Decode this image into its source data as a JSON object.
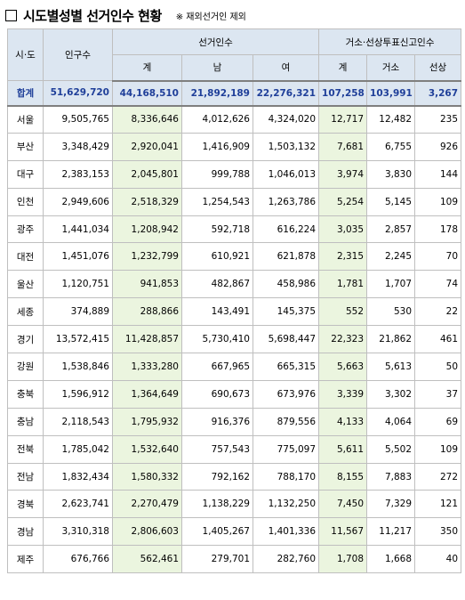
{
  "header": {
    "title": "시도별성별 선거인수 현황",
    "note": "※ 재외선거인 제외"
  },
  "table": {
    "columns": {
      "region": "시·도",
      "population": "인구수",
      "electors": "선거인수",
      "electors_sub": [
        "계",
        "남",
        "여"
      ],
      "absentee": "거소·선상투표신고인수",
      "absentee_sub": [
        "계",
        "거소",
        "선상"
      ]
    },
    "rows": [
      [
        "합계",
        "51,629,720",
        "44,168,510",
        "21,892,189",
        "22,276,321",
        "107,258",
        "103,991",
        "3,267"
      ],
      [
        "서울",
        "9,505,765",
        "8,336,646",
        "4,012,626",
        "4,324,020",
        "12,717",
        "12,482",
        "235"
      ],
      [
        "부산",
        "3,348,429",
        "2,920,041",
        "1,416,909",
        "1,503,132",
        "7,681",
        "6,755",
        "926"
      ],
      [
        "대구",
        "2,383,153",
        "2,045,801",
        "999,788",
        "1,046,013",
        "3,974",
        "3,830",
        "144"
      ],
      [
        "인천",
        "2,949,606",
        "2,518,329",
        "1,254,543",
        "1,263,786",
        "5,254",
        "5,145",
        "109"
      ],
      [
        "광주",
        "1,441,034",
        "1,208,942",
        "592,718",
        "616,224",
        "3,035",
        "2,857",
        "178"
      ],
      [
        "대전",
        "1,451,076",
        "1,232,799",
        "610,921",
        "621,878",
        "2,315",
        "2,245",
        "70"
      ],
      [
        "울산",
        "1,120,751",
        "941,853",
        "482,867",
        "458,986",
        "1,781",
        "1,707",
        "74"
      ],
      [
        "세종",
        "374,889",
        "288,866",
        "143,491",
        "145,375",
        "552",
        "530",
        "22"
      ],
      [
        "경기",
        "13,572,415",
        "11,428,857",
        "5,730,410",
        "5,698,447",
        "22,323",
        "21,862",
        "461"
      ],
      [
        "강원",
        "1,538,846",
        "1,333,280",
        "667,965",
        "665,315",
        "5,663",
        "5,613",
        "50"
      ],
      [
        "충북",
        "1,596,912",
        "1,364,649",
        "690,673",
        "673,976",
        "3,339",
        "3,302",
        "37"
      ],
      [
        "충남",
        "2,118,543",
        "1,795,932",
        "916,376",
        "879,556",
        "4,133",
        "4,064",
        "69"
      ],
      [
        "전북",
        "1,785,042",
        "1,532,640",
        "757,543",
        "775,097",
        "5,611",
        "5,502",
        "109"
      ],
      [
        "전남",
        "1,832,434",
        "1,580,332",
        "792,162",
        "788,170",
        "8,155",
        "7,883",
        "272"
      ],
      [
        "경북",
        "2,623,741",
        "2,270,479",
        "1,138,229",
        "1,132,250",
        "7,450",
        "7,329",
        "121"
      ],
      [
        "경남",
        "3,310,318",
        "2,806,603",
        "1,405,267",
        "1,401,336",
        "11,567",
        "11,217",
        "350"
      ],
      [
        "제주",
        "676,766",
        "562,461",
        "279,701",
        "282,760",
        "1,708",
        "1,668",
        "40"
      ]
    ]
  }
}
